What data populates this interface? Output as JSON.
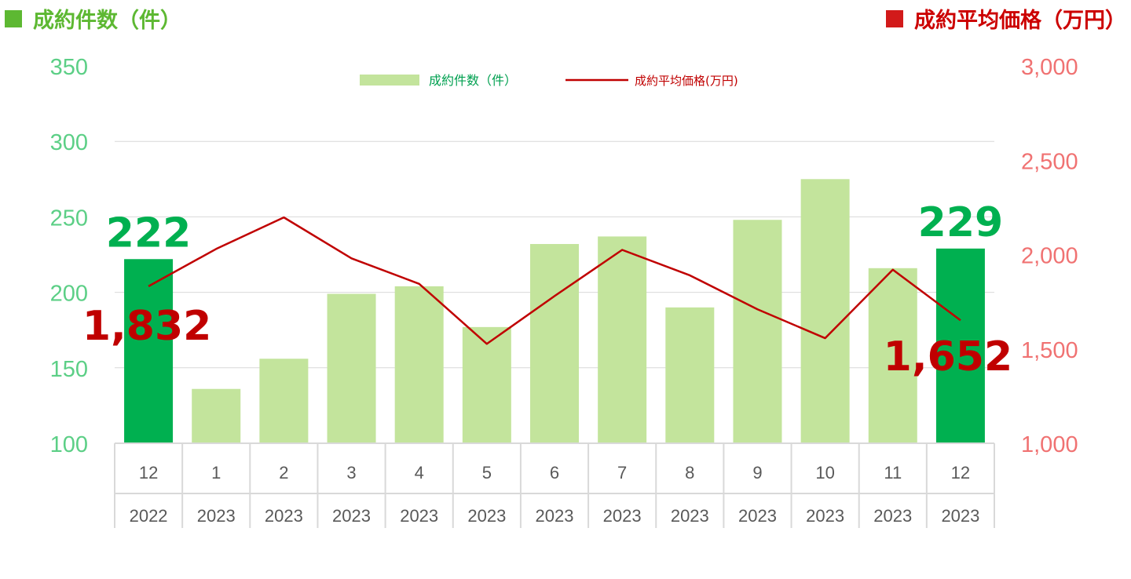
{
  "header": {
    "left_title": "成約件数（件）",
    "right_title": "成約平均価格（万円）"
  },
  "colors": {
    "bar": "#c3e49c",
    "bar_highlight": "#00b050",
    "line": "#c00000",
    "left_axis_text": "#5ccf86",
    "right_axis_text": "#f07272",
    "grid": "#d9d9d9"
  },
  "chart_data": {
    "type": "bar+line",
    "categories": [
      {
        "month": "12",
        "year": "2022"
      },
      {
        "month": "1",
        "year": "2023"
      },
      {
        "month": "2",
        "year": "2023"
      },
      {
        "month": "3",
        "year": "2023"
      },
      {
        "month": "4",
        "year": "2023"
      },
      {
        "month": "5",
        "year": "2023"
      },
      {
        "month": "6",
        "year": "2023"
      },
      {
        "month": "7",
        "year": "2023"
      },
      {
        "month": "8",
        "year": "2023"
      },
      {
        "month": "9",
        "year": "2023"
      },
      {
        "month": "10",
        "year": "2023"
      },
      {
        "month": "11",
        "year": "2023"
      },
      {
        "month": "12",
        "year": "2023"
      }
    ],
    "series": [
      {
        "name": "成約件数（件）",
        "type": "bar",
        "axis": "left",
        "values": [
          222,
          136,
          156,
          199,
          204,
          177,
          232,
          237,
          190,
          248,
          275,
          216,
          229
        ],
        "highlight_indices": [
          0,
          12
        ]
      },
      {
        "name": "成約平均価格(万円)",
        "type": "line",
        "axis": "right",
        "values": [
          1832,
          2030,
          2197,
          1980,
          1845,
          1527,
          1780,
          2025,
          1890,
          1710,
          1557,
          1920,
          1652
        ]
      }
    ],
    "left_axis": {
      "min": 100,
      "max": 350,
      "ticks": [
        "350",
        "300",
        "250",
        "200",
        "150",
        "100"
      ],
      "tick_values": [
        350,
        300,
        250,
        200,
        150,
        100
      ]
    },
    "right_axis": {
      "min": 1000,
      "max": 3000,
      "ticks": [
        "3,000",
        "2,500",
        "2,000",
        "1,500",
        "1,000"
      ],
      "tick_values": [
        3000,
        2500,
        2000,
        1500,
        1000
      ]
    },
    "grid": true,
    "legend": {
      "placement": "top-center",
      "items": [
        "成約件数（件）",
        "成約平均価格(万円)"
      ]
    },
    "annotations": [
      {
        "label": "222",
        "series": 0,
        "index": 0
      },
      {
        "label": "229",
        "series": 0,
        "index": 12
      },
      {
        "label": "1,832",
        "series": 1,
        "index": 0
      },
      {
        "label": "1,652",
        "series": 1,
        "index": 12
      }
    ]
  }
}
